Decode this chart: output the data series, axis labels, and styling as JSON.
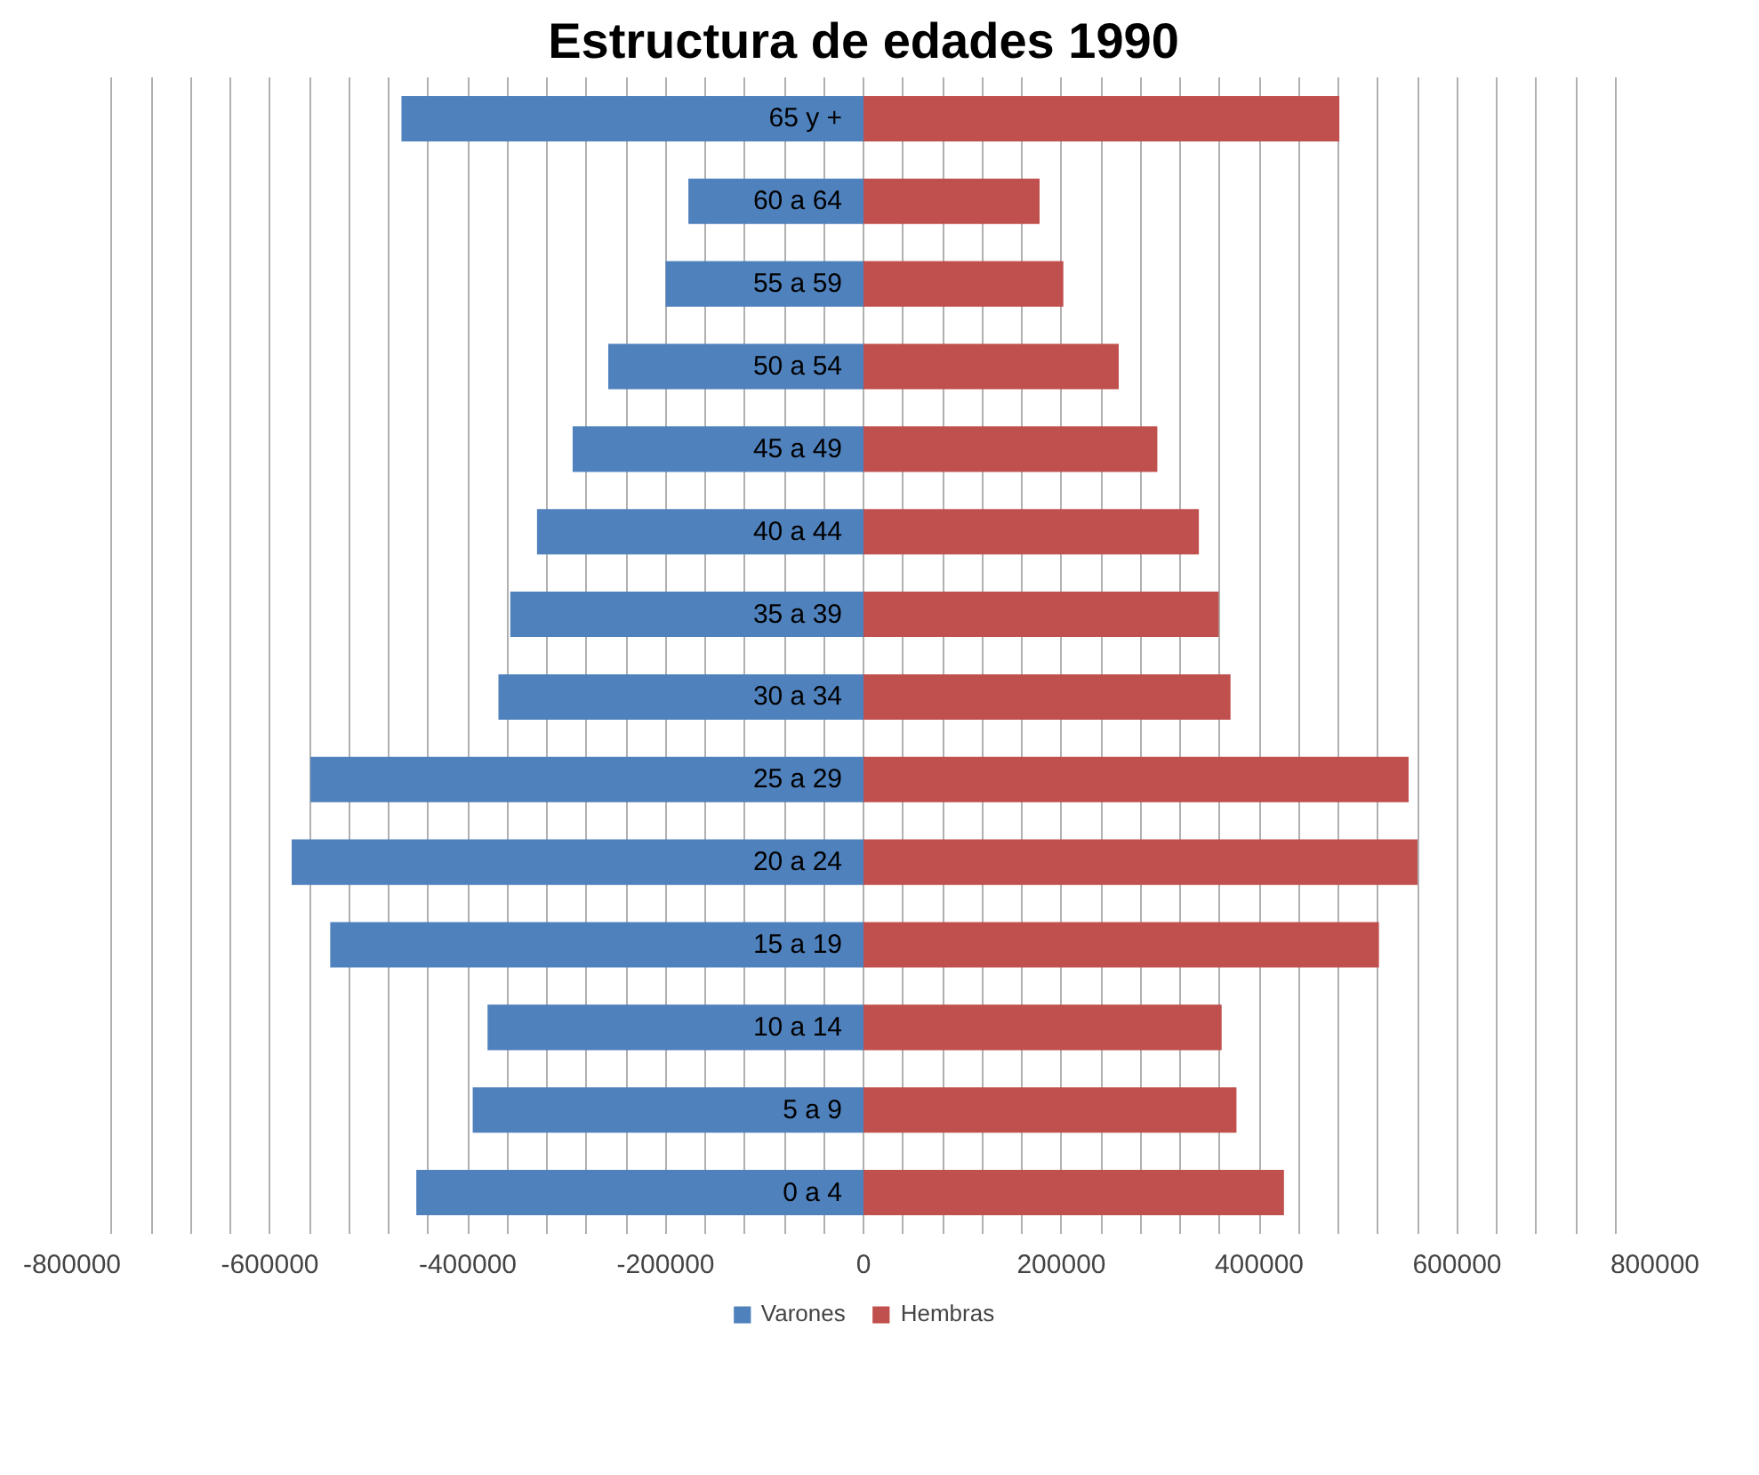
{
  "chart_data": {
    "type": "bar",
    "orientation": "horizontal",
    "stacked": true,
    "title": "Estructura de edades 1990",
    "categories": [
      "65 y +",
      "60 a 64",
      "55 a 59",
      "50 a 54",
      "45 a 49",
      "40 a 44",
      "35 a 39",
      "30 a 34",
      "25 a 29",
      "20 a 24",
      "15 a 19",
      "10 a 14",
      "5 a 9",
      "0 a 4"
    ],
    "series": [
      {
        "name": "Varones",
        "color": "#4f81bd",
        "values": [
          -467000,
          -177000,
          -200000,
          -258000,
          -294000,
          -330000,
          -357000,
          -369000,
          -559000,
          -578000,
          -539000,
          -380000,
          -395000,
          -452000
        ]
      },
      {
        "name": "Hembras",
        "color": "#c0504d",
        "values": [
          481000,
          178000,
          202000,
          258000,
          297000,
          339000,
          359000,
          371000,
          551000,
          560000,
          521000,
          362000,
          377000,
          425000
        ]
      }
    ],
    "xlim": [
      -800000,
      800000
    ],
    "xticks": [
      -800000,
      {
        "value": -760000,
        "label": null
      },
      {
        "value": -720000,
        "label": null
      },
      {
        "value": -680000,
        "label": null
      },
      {
        "value": -640000,
        "label": null
      },
      -600000,
      {
        "value": -560000,
        "label": null
      },
      {
        "value": -520000,
        "label": null
      },
      {
        "value": -480000,
        "label": null
      },
      {
        "value": -440000,
        "label": null
      },
      -400000,
      {
        "value": -360000,
        "label": null
      },
      {
        "value": -320000,
        "label": null
      },
      {
        "value": -280000,
        "label": null
      },
      {
        "value": -240000,
        "label": null
      },
      -200000,
      {
        "value": -160000,
        "label": null
      },
      {
        "value": -120000,
        "label": null
      },
      {
        "value": -80000,
        "label": null
      },
      {
        "value": -40000,
        "label": null
      },
      0,
      {
        "value": 40000,
        "label": null
      },
      {
        "value": 80000,
        "label": null
      },
      {
        "value": 120000,
        "label": null
      },
      {
        "value": 160000,
        "label": null
      },
      200000,
      {
        "value": 240000,
        "label": null
      },
      {
        "value": 280000,
        "label": null
      },
      {
        "value": 320000,
        "label": null
      },
      {
        "value": 360000,
        "label": null
      },
      400000,
      {
        "value": 440000,
        "label": null
      },
      {
        "value": 480000,
        "label": null
      },
      {
        "value": 520000,
        "label": null
      },
      {
        "value": 560000,
        "label": null
      },
      600000,
      {
        "value": 640000,
        "label": null
      },
      {
        "value": 680000,
        "label": null
      },
      {
        "value": 720000,
        "label": null
      },
      {
        "value": 760000,
        "label": null
      },
      800000
    ],
    "grid": "x",
    "legend": "bottom"
  }
}
